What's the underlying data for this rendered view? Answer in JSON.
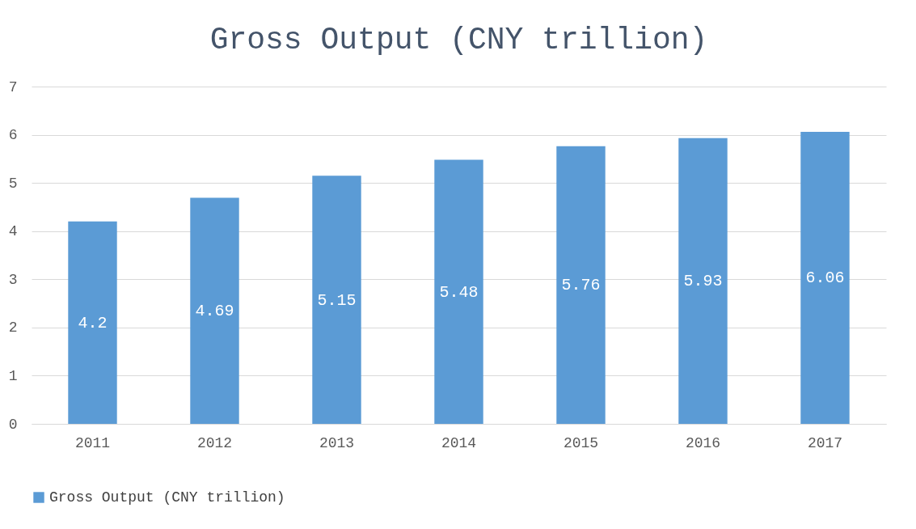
{
  "chart_data": {
    "type": "bar",
    "title": "Gross Output (CNY trillion)",
    "categories": [
      "2011",
      "2012",
      "2013",
      "2014",
      "2015",
      "2016",
      "2017"
    ],
    "series": [
      {
        "name": "Gross Output (CNY trillion)",
        "color": "#5b9bd5",
        "values": [
          4.2,
          4.69,
          5.15,
          5.48,
          5.76,
          5.93,
          6.06
        ]
      }
    ],
    "ylim": [
      0,
      7
    ],
    "yticks": [
      0,
      1,
      2,
      3,
      4,
      5,
      6,
      7
    ],
    "grid": "y",
    "legend": "bottom",
    "data_labels": true
  }
}
